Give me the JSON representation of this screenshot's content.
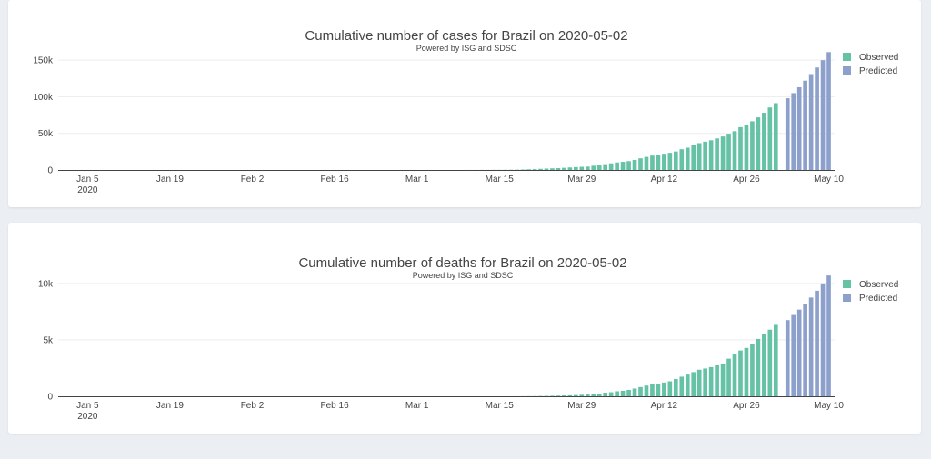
{
  "colors": {
    "observed": "#66c2a5",
    "predicted": "#8da0cb"
  },
  "charts": [
    {
      "chart_data": {
        "type": "bar",
        "title": "Cumulative number of cases for Brazil on 2020-05-02",
        "subtitle": "Powered by ISG and SDSC",
        "x_start": "2020-01-01",
        "x_end": "2020-05-10",
        "xlim": [
          "2019-12-31",
          "2020-05-11"
        ],
        "ylim": [
          0,
          180000
        ],
        "y_ticks": [
          0,
          50000,
          100000,
          150000
        ],
        "y_tick_labels": [
          "0",
          "50k",
          "100k",
          "150k"
        ],
        "x_ticks": [
          "2020-01-05",
          "2020-01-19",
          "2020-02-02",
          "2020-02-16",
          "2020-03-01",
          "2020-03-15",
          "2020-03-29",
          "2020-04-12",
          "2020-04-26",
          "2020-05-10"
        ],
        "x_tick_labels": [
          "Jan 5\n2020",
          "Jan 19",
          "Feb 2",
          "Feb 16",
          "Mar 1",
          "Mar 15",
          "Mar 29",
          "Apr 12",
          "Apr 26",
          "May 10"
        ],
        "legend": {
          "placement": "top-right",
          "entries": [
            "Observed",
            "Predicted"
          ]
        },
        "series": [
          {
            "name": "Observed",
            "x_first": "2020-02-26",
            "values": [
              1,
              1,
              2,
              2,
              2,
              2,
              3,
              8,
              13,
              20,
              25,
              31,
              38,
              52,
              77,
              98,
              121,
              151,
              200,
              234,
              291,
              428,
              621,
              904,
              1128,
              1546,
              1891,
              2201,
              2433,
              2915,
              3417,
              3904,
              4256,
              4579,
              5717,
              6836,
              7910,
              9056,
              10278,
              11130,
              12056,
              13717,
              15927,
              17857,
              19638,
              20727,
              22169,
              23430,
              25262,
              28320,
              30425,
              33682,
              36599,
              38654,
              40581,
              43079,
              45757,
              49492,
              52995,
              58509,
              61888,
              66501,
              71886,
              78162,
              85380,
              91299
            ]
          },
          {
            "name": "Predicted",
            "x_first": "2020-05-03",
            "values": [
              98000,
              105000,
              113000,
              122000,
              131000,
              140000,
              150000,
              161000
            ]
          }
        ]
      }
    },
    {
      "chart_data": {
        "type": "bar",
        "title": "Cumulative number of deaths for Brazil on 2020-05-02",
        "subtitle": "Powered by ISG and SDSC",
        "x_start": "2020-01-01",
        "x_end": "2020-05-10",
        "xlim": [
          "2019-12-31",
          "2020-05-11"
        ],
        "ylim": [
          0,
          12000
        ],
        "y_ticks": [
          0,
          5000,
          10000
        ],
        "y_tick_labels": [
          "0",
          "5k",
          "10k"
        ],
        "x_ticks": [
          "2020-01-05",
          "2020-01-19",
          "2020-02-02",
          "2020-02-16",
          "2020-03-01",
          "2020-03-15",
          "2020-03-29",
          "2020-04-12",
          "2020-04-26",
          "2020-05-10"
        ],
        "x_tick_labels": [
          "Jan 5\n2020",
          "Jan 19",
          "Feb 2",
          "Feb 16",
          "Mar 1",
          "Mar 15",
          "Mar 29",
          "Apr 12",
          "Apr 26",
          "May 10"
        ],
        "legend": {
          "placement": "top-right",
          "entries": [
            "Observed",
            "Predicted"
          ]
        },
        "series": [
          {
            "name": "Observed",
            "x_first": "2020-03-17",
            "values": [
              1,
              3,
              6,
              11,
              15,
              25,
              34,
              46,
              59,
              77,
              92,
              111,
              136,
              159,
              201,
              240,
              324,
              359,
              445,
              486,
              564,
              686,
              819,
              950,
              1057,
              1124,
              1223,
              1328,
              1532,
              1736,
              1924,
              2141,
              2354,
              2462,
              2587,
              2741,
              2906,
              3331,
              3704,
              4057,
              4286,
              4603,
              5083,
              5513,
              5901,
              6329
            ]
          },
          {
            "name": "Predicted",
            "x_first": "2020-05-03",
            "values": [
              6750,
              7200,
              7680,
              8200,
              8750,
              9350,
              10000,
              10700
            ]
          }
        ]
      }
    }
  ]
}
